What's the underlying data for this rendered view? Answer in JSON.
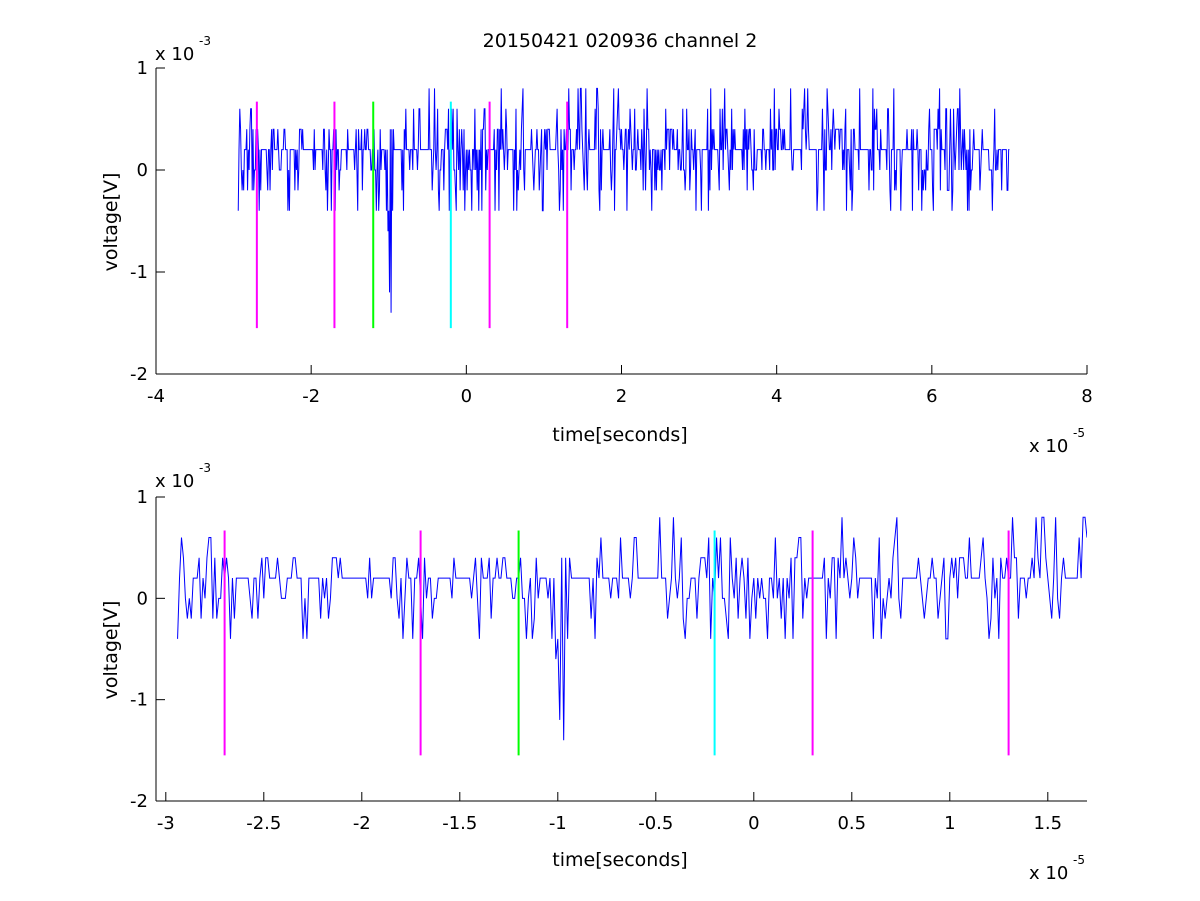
{
  "figure": {
    "title": "20150421 020936 channel 2"
  },
  "chart_data": [
    {
      "type": "line",
      "title": "20150421 020936 channel 2",
      "xlabel": "time[seconds]",
      "ylabel": "voltage[V]",
      "x_exponent_base": "x 10",
      "x_exponent_power": "-5",
      "y_exponent_base": "x 10",
      "y_exponent_power": "-3",
      "xlim": [
        -4,
        8
      ],
      "ylim": [
        -2,
        1
      ],
      "xticks": [
        -4,
        -2,
        0,
        2,
        4,
        6,
        8
      ],
      "xtick_labels": [
        "-4",
        "-2",
        "0",
        "2",
        "4",
        "6",
        "8"
      ],
      "yticks": [
        -2,
        -1,
        0,
        1
      ],
      "ytick_labels": [
        "-2",
        "-1",
        "0",
        "1"
      ],
      "grid": false,
      "legend": "none",
      "series": [
        {
          "color": "#0000ff",
          "x_range": [
            -2.94,
            7.0
          ],
          "baseline": 0.2,
          "quantization": 0.2,
          "notable_points": [
            {
              "x": -2.3,
              "y": -0.4
            },
            {
              "x": -0.97,
              "y": -1.4
            },
            {
              "x": -1.0,
              "y": -0.4
            },
            {
              "x": 6.5,
              "y": -0.2
            },
            {
              "x": 6.9,
              "y": -0.2
            }
          ]
        }
      ],
      "markers": [
        {
          "x": -2.7,
          "y_from": -1.55,
          "y_to": 0.67,
          "color": "#ff00ff"
        },
        {
          "x": -1.7,
          "y_from": -1.55,
          "y_to": 0.67,
          "color": "#ff00ff"
        },
        {
          "x": -1.2,
          "y_from": -1.55,
          "y_to": 0.67,
          "color": "#00ff00"
        },
        {
          "x": -0.2,
          "y_from": -1.55,
          "y_to": 0.67,
          "color": "#00ffff"
        },
        {
          "x": 0.3,
          "y_from": -1.55,
          "y_to": 0.67,
          "color": "#ff00ff"
        },
        {
          "x": 1.3,
          "y_from": -1.55,
          "y_to": 0.67,
          "color": "#ff00ff"
        }
      ]
    },
    {
      "type": "line",
      "xlabel": "time[seconds]",
      "ylabel": "voltage[V]",
      "x_exponent_base": "x 10",
      "x_exponent_power": "-5",
      "y_exponent_base": "x 10",
      "y_exponent_power": "-3",
      "xlim": [
        -3.05,
        1.7
      ],
      "ylim": [
        -2,
        1
      ],
      "xticks": [
        -3,
        -2.5,
        -2,
        -1.5,
        -1,
        -0.5,
        0,
        0.5,
        1,
        1.5
      ],
      "xtick_labels": [
        "-3",
        "-2.5",
        "-2",
        "-1.5",
        "-1",
        "-0.5",
        "0",
        "0.5",
        "1",
        "1.5"
      ],
      "yticks": [
        -2,
        -1,
        0,
        1
      ],
      "ytick_labels": [
        "-2",
        "-1",
        "0",
        "1"
      ],
      "grid": false,
      "legend": "none",
      "series": [
        {
          "color": "#0000ff",
          "x_range": [
            -2.94,
            1.7
          ],
          "baseline": 0.2,
          "quantization": 0.2,
          "notable_points": [
            {
              "x": -2.3,
              "y": -0.4
            },
            {
              "x": -0.97,
              "y": -1.4
            },
            {
              "x": -1.0,
              "y": -0.4
            },
            {
              "x": -0.95,
              "y": 0.6
            },
            {
              "x": 0.64,
              "y": 0.6
            },
            {
              "x": 1.1,
              "y": 0.6
            }
          ]
        }
      ],
      "markers": [
        {
          "x": -2.7,
          "y_from": -1.55,
          "y_to": 0.67,
          "color": "#ff00ff"
        },
        {
          "x": -1.7,
          "y_from": -1.55,
          "y_to": 0.67,
          "color": "#ff00ff"
        },
        {
          "x": -1.2,
          "y_from": -1.55,
          "y_to": 0.67,
          "color": "#00ff00"
        },
        {
          "x": -0.2,
          "y_from": -1.55,
          "y_to": 0.67,
          "color": "#00ffff"
        },
        {
          "x": 0.3,
          "y_from": -1.55,
          "y_to": 0.67,
          "color": "#ff00ff"
        },
        {
          "x": 1.3,
          "y_from": -1.55,
          "y_to": 0.67,
          "color": "#ff00ff"
        }
      ]
    }
  ]
}
